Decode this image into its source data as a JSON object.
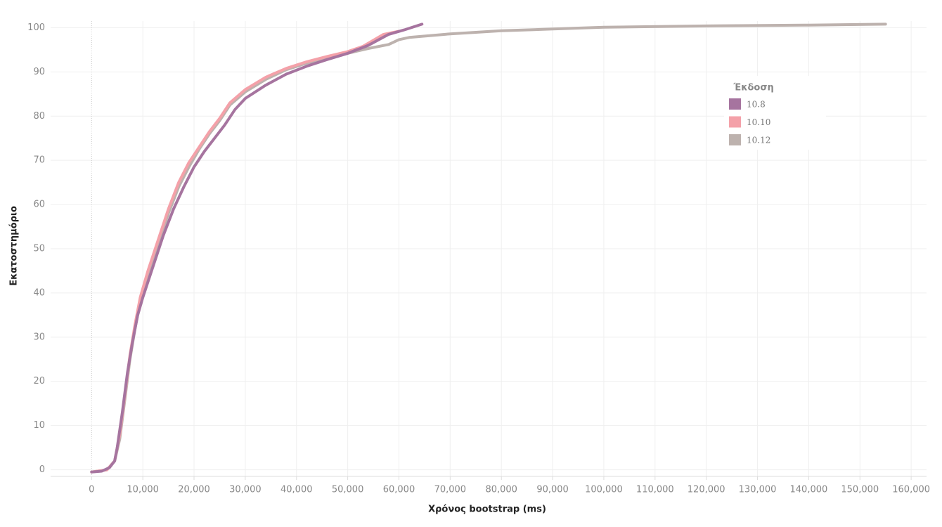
{
  "chart_data": {
    "type": "line",
    "x_label": "Χρόνος bootstrap (ms)",
    "y_label": "Εκατοστημόριο",
    "legend_title": "Έκδοση",
    "legend_position": "upper right",
    "grid": true,
    "xlim": [
      -8000,
      163000
    ],
    "ylim": [
      -1.5,
      101.5
    ],
    "xticks": [
      0,
      {
        "value": 10000,
        "label": "10,000"
      },
      {
        "value": 20000,
        "label": "20,000"
      },
      {
        "value": 30000,
        "label": "30,000"
      },
      {
        "value": 40000,
        "label": "40,000"
      },
      {
        "value": 50000,
        "label": "50,000"
      },
      {
        "value": 60000,
        "label": "60,000"
      },
      {
        "value": 70000,
        "label": "70,000"
      },
      {
        "value": 80000,
        "label": "80,000"
      },
      {
        "value": 90000,
        "label": "90,000"
      },
      {
        "value": 100000,
        "label": "100,000"
      },
      {
        "value": 110000,
        "label": "110,000"
      },
      {
        "value": 120000,
        "label": "120,000"
      },
      {
        "value": 130000,
        "label": "130,000"
      },
      {
        "value": 140000,
        "label": "140,000"
      },
      {
        "value": 150000,
        "label": "150,000"
      },
      {
        "value": 160000,
        "label": "160,000"
      }
    ],
    "yticks": [
      0,
      10,
      20,
      30,
      40,
      50,
      60,
      70,
      80,
      90,
      100
    ],
    "series": [
      {
        "name": "10.12",
        "color": "#bdb2ae",
        "x": [
          0,
          3000,
          4500,
          5500,
          6500,
          7500,
          8500,
          9500,
          11000,
          13000,
          15000,
          17000,
          19000,
          21000,
          23000,
          25000,
          27000,
          30000,
          34000,
          38000,
          42000,
          46000,
          50000,
          54000,
          58000,
          60000,
          62000,
          70000,
          80000,
          90000,
          100000,
          120000,
          140000,
          155000
        ],
        "values": [
          -0.5,
          0,
          2,
          7,
          16,
          25,
          32,
          38,
          44,
          51,
          58,
          64,
          68.5,
          72.5,
          76,
          79,
          82.5,
          85.5,
          88.3,
          90.5,
          92,
          93.2,
          94.2,
          95.3,
          96.2,
          97.3,
          97.8,
          98.6,
          99.3,
          99.7,
          100.1,
          100.4,
          100.6,
          100.8
        ]
      },
      {
        "name": "10.10",
        "color": "#f4a1a9",
        "x": [
          0,
          3000,
          4500,
          5500,
          6500,
          7500,
          8500,
          9500,
          11000,
          13000,
          15000,
          17000,
          19000,
          21000,
          23000,
          25000,
          27000,
          30000,
          34000,
          38000,
          42000,
          46000,
          50000,
          53000,
          57000,
          60000
        ],
        "values": [
          -0.5,
          0,
          2,
          8,
          17,
          26,
          33,
          39,
          45,
          52,
          59,
          65,
          69.5,
          73,
          76.5,
          79.5,
          83,
          86,
          88.8,
          90.8,
          92.3,
          93.5,
          94.6,
          95.8,
          98.5,
          99.2
        ]
      },
      {
        "name": "10.8",
        "color": "#a6749f",
        "x": [
          0,
          2000,
          3500,
          4500,
          5000,
          6000,
          7000,
          8000,
          9000,
          10000,
          12000,
          14000,
          16000,
          18000,
          20000,
          22000,
          24000,
          26000,
          28000,
          30000,
          34000,
          38000,
          42000,
          46000,
          50000,
          54000,
          58000,
          61000,
          64500
        ],
        "values": [
          -0.5,
          -0.3,
          0.5,
          2,
          5,
          13,
          22,
          29,
          35,
          39,
          46,
          53,
          59,
          64,
          68.5,
          72,
          75,
          78,
          81.5,
          84,
          87,
          89.5,
          91.3,
          92.8,
          94.2,
          96,
          98.5,
          99.5,
          100.8
        ]
      }
    ]
  }
}
